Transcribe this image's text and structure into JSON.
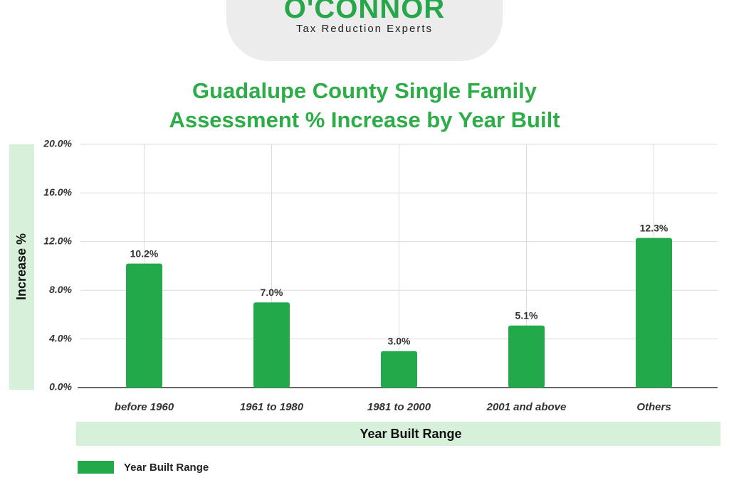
{
  "logo": {
    "name": "O'CONNOR",
    "tagline": "Tax Reduction Experts"
  },
  "colors": {
    "bar": "#22a94a",
    "title": "#2eac48",
    "axis_band": "#d6f0d9"
  },
  "chart_data": {
    "type": "bar",
    "title": "Guadalupe County Single Family Assessment % Increase by Year Built",
    "title_lines": [
      "Guadalupe County Single Family",
      "Assessment % Increase by Year Built"
    ],
    "xlabel": "Year Built Range",
    "ylabel": "Increase %",
    "categories": [
      "before 1960",
      "1961 to 1980",
      "1981 to 2000",
      "2001 and above",
      "Others"
    ],
    "series": [
      {
        "name": "Year Built Range",
        "values": [
          10.2,
          7.0,
          3.0,
          5.1,
          12.3
        ]
      }
    ],
    "data_labels": [
      "10.2%",
      "7.0%",
      "3.0%",
      "5.1%",
      "12.3%"
    ],
    "yticks": [
      0,
      4,
      8,
      12,
      16,
      20
    ],
    "ytick_labels": [
      "0.0%",
      "4.0%",
      "8.0%",
      "12.0%",
      "16.0%",
      "20.0%"
    ],
    "ylim": [
      0,
      20
    ],
    "grid": true,
    "legend": {
      "position": "bottom-left",
      "label": "Year Built Range"
    }
  }
}
